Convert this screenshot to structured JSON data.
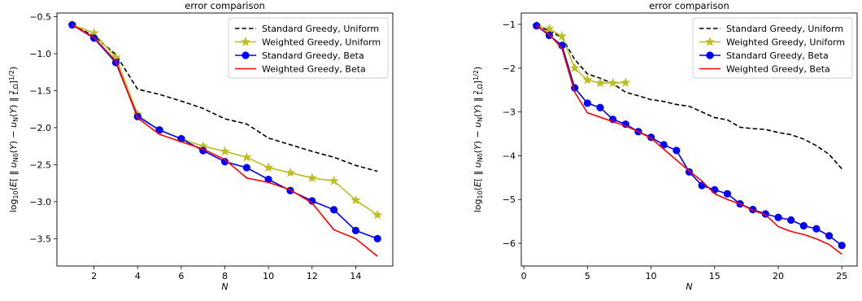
{
  "chart_data": [
    {
      "type": "line",
      "title": "error comparison",
      "xlabel": "N",
      "ylabel": "log10(E[ ‖ u_{Nδ}(Y) − u_N(Y) ‖²_{1,Ω} ]^{1/2})",
      "xlim": [
        0.3,
        15.7
      ],
      "ylim": [
        -3.87,
        -0.45
      ],
      "xticks": [
        2,
        4,
        6,
        8,
        10,
        12,
        14
      ],
      "yticks": [
        -3.5,
        -3.0,
        -2.5,
        -2.0,
        -1.5,
        -1.0,
        -0.5
      ],
      "xtick_labels": [
        "2",
        "4",
        "6",
        "8",
        "10",
        "12",
        "14"
      ],
      "ytick_labels": [
        "−3.5",
        "−3.0",
        "−2.5",
        "−2.0",
        "−1.5",
        "−1.0",
        "−0.5"
      ],
      "grid": false,
      "legend_position": "top-right",
      "series": [
        {
          "name": "Standard Greedy, Uniform",
          "color": "#000000",
          "style": "dashed",
          "marker": "none",
          "x": [
            1,
            2,
            3,
            4,
            5,
            6,
            7,
            8,
            9,
            10,
            11,
            12,
            13,
            14,
            15
          ],
          "y": [
            -0.61,
            -0.76,
            -1.01,
            -1.48,
            -1.55,
            -1.64,
            -1.74,
            -1.88,
            -1.95,
            -2.14,
            -2.23,
            -2.32,
            -2.4,
            -2.51,
            -2.59
          ]
        },
        {
          "name": "Weighted Greedy, Uniform",
          "color": "#bcbd22",
          "style": "solid",
          "marker": "star",
          "x": [
            1,
            2,
            3,
            4,
            5,
            6,
            7,
            8,
            9,
            10,
            11,
            12,
            13,
            14,
            15
          ],
          "y": [
            -0.61,
            -0.72,
            -1.05,
            -1.82,
            -2.04,
            -2.15,
            -2.25,
            -2.32,
            -2.4,
            -2.54,
            -2.61,
            -2.68,
            -2.72,
            -2.98,
            -3.18
          ]
        },
        {
          "name": "Standard Greedy, Beta",
          "color": "#0000ff",
          "style": "solid",
          "marker": "circle",
          "x": [
            1,
            2,
            3,
            4,
            5,
            6,
            7,
            8,
            9,
            10,
            11,
            12,
            13,
            14,
            15
          ],
          "y": [
            -0.61,
            -0.79,
            -1.12,
            -1.85,
            -2.03,
            -2.15,
            -2.31,
            -2.46,
            -2.54,
            -2.7,
            -2.85,
            -2.99,
            -3.11,
            -3.39,
            -3.5
          ]
        },
        {
          "name": "Weighted Greedy, Beta",
          "color": "#ff0000",
          "style": "solid",
          "marker": "none",
          "x": [
            1,
            2,
            3,
            4,
            5,
            6,
            7,
            8,
            9,
            10,
            11,
            12,
            13,
            14,
            15
          ],
          "y": [
            -0.61,
            -0.78,
            -1.1,
            -1.87,
            -2.09,
            -2.19,
            -2.29,
            -2.43,
            -2.68,
            -2.74,
            -2.84,
            -3.02,
            -3.38,
            -3.5,
            -3.74
          ]
        }
      ]
    },
    {
      "type": "line",
      "title": "error comparison",
      "xlabel": "N",
      "ylabel": "log10(E[ ‖ u_{Nδ}(Y) − u_N(Y) ‖²_{1,Ω} ]^{1/2})",
      "xlim": [
        -0.2,
        26.2
      ],
      "ylim": [
        -6.52,
        -0.74
      ],
      "xticks": [
        0,
        5,
        10,
        15,
        20,
        25
      ],
      "yticks": [
        -6,
        -5,
        -4,
        -3,
        -2,
        -1
      ],
      "xtick_labels": [
        "0",
        "5",
        "10",
        "15",
        "20",
        "25"
      ],
      "ytick_labels": [
        "−6",
        "−5",
        "−4",
        "−3",
        "−2",
        "−1"
      ],
      "grid": false,
      "legend_position": "top-right",
      "series": [
        {
          "name": "Standard Greedy, Uniform",
          "color": "#000000",
          "style": "dashed",
          "marker": "none",
          "x": [
            1,
            2,
            3,
            4,
            5,
            6,
            7,
            8,
            9,
            10,
            11,
            12,
            13,
            14,
            15,
            16,
            17,
            18,
            19,
            20,
            21,
            22,
            23,
            24,
            25
          ],
          "y": [
            -1.03,
            -1.15,
            -1.3,
            -1.8,
            -2.13,
            -2.23,
            -2.35,
            -2.55,
            -2.63,
            -2.72,
            -2.76,
            -2.83,
            -2.87,
            -3.0,
            -3.13,
            -3.18,
            -3.35,
            -3.38,
            -3.4,
            -3.47,
            -3.52,
            -3.62,
            -3.77,
            -3.97,
            -4.3
          ]
        },
        {
          "name": "Weighted Greedy, Uniform",
          "color": "#bcbd22",
          "style": "solid",
          "marker": "star",
          "x": [
            1,
            2,
            3,
            4,
            5,
            6,
            7,
            8
          ],
          "y": [
            -1.03,
            -1.1,
            -1.27,
            -2.0,
            -2.27,
            -2.34,
            -2.34,
            -2.33
          ]
        },
        {
          "name": "Standard Greedy, Beta",
          "color": "#0000ff",
          "style": "solid",
          "marker": "circle",
          "x": [
            1,
            2,
            3,
            4,
            5,
            6,
            7,
            8,
            9,
            10,
            11,
            12,
            13,
            14,
            15,
            16,
            17,
            18,
            19,
            20,
            21,
            22,
            23,
            24,
            25
          ],
          "y": [
            -1.03,
            -1.25,
            -1.48,
            -2.45,
            -2.8,
            -2.9,
            -3.17,
            -3.28,
            -3.45,
            -3.58,
            -3.75,
            -3.88,
            -4.37,
            -4.68,
            -4.78,
            -4.87,
            -5.1,
            -5.23,
            -5.33,
            -5.41,
            -5.47,
            -5.6,
            -5.67,
            -5.83,
            -6.05
          ]
        },
        {
          "name": "Weighted Greedy, Beta",
          "color": "#ff0000",
          "style": "solid",
          "marker": "none",
          "x": [
            1,
            2,
            3,
            4,
            5,
            6,
            7,
            8,
            9,
            10,
            11,
            12,
            13,
            14,
            15,
            16,
            17,
            18,
            19,
            20,
            21,
            22,
            23,
            24,
            25
          ],
          "y": [
            -1.03,
            -1.23,
            -1.55,
            -2.55,
            -3.02,
            -3.12,
            -3.22,
            -3.32,
            -3.45,
            -3.6,
            -3.85,
            -4.1,
            -4.35,
            -4.58,
            -4.87,
            -5.0,
            -5.1,
            -5.25,
            -5.35,
            -5.62,
            -5.73,
            -5.8,
            -5.9,
            -6.03,
            -6.25
          ]
        }
      ]
    }
  ]
}
